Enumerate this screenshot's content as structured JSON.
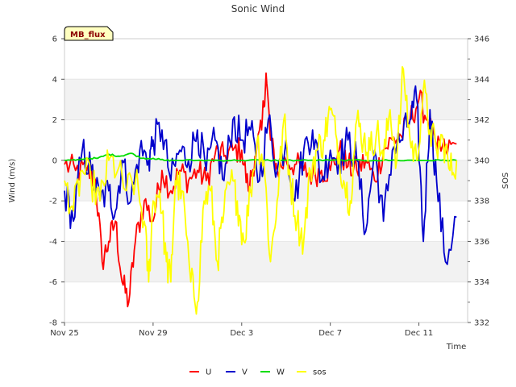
{
  "chart_data": {
    "type": "line",
    "title": "Sonic Wind",
    "badge": "MB_flux",
    "xlabel": "Time",
    "ylabel": "Wind (m/s)",
    "y2label": "SOS",
    "x_start_day": 0,
    "x_end_day": 17.7,
    "xlim": [
      0,
      18.2
    ],
    "x_ticks": [
      {
        "day": 0,
        "label": "Nov 25"
      },
      {
        "day": 4,
        "label": "Nov 29"
      },
      {
        "day": 8,
        "label": "Dec 3"
      },
      {
        "day": 12,
        "label": "Dec 7"
      },
      {
        "day": 16,
        "label": "Dec 11"
      }
    ],
    "ylim": [
      -8,
      6
    ],
    "y_ticks": [
      -8,
      -6,
      -4,
      -2,
      0,
      2,
      4,
      6
    ],
    "y2lim": [
      332,
      346
    ],
    "y2_ticks": [
      332,
      334,
      336,
      338,
      340,
      342,
      344,
      346
    ],
    "bands": [
      [
        -6,
        -4
      ],
      [
        -2,
        0
      ],
      [
        2,
        4
      ]
    ],
    "series": [
      {
        "name": "U",
        "color": "#ff0000",
        "axis": "left",
        "x": [
          0,
          0.5,
          1,
          1.4,
          1.7,
          2,
          2.3,
          2.6,
          2.9,
          3.2,
          3.6,
          4,
          4.4,
          4.8,
          5.2,
          5.6,
          6,
          6.4,
          6.8,
          7.2,
          7.6,
          8,
          8.3,
          8.6,
          8.9,
          9.1,
          9.3,
          9.6,
          10,
          10.4,
          10.8,
          11.2,
          11.6,
          12,
          12.4,
          12.8,
          13.2,
          13.6,
          14,
          14.4,
          14.8,
          15.2,
          15.6,
          16,
          16.4,
          16.8,
          17.2,
          17.7
        ],
        "values": [
          -0.2,
          -0.5,
          -0.5,
          -1.0,
          -5.0,
          -4.0,
          -3.0,
          -6.0,
          -7.0,
          -4.0,
          -2.0,
          -3.0,
          -0.5,
          -1.5,
          -0.5,
          -1.0,
          -0.5,
          -1.0,
          0.3,
          0.2,
          0.5,
          0.5,
          -1.5,
          0.2,
          1.5,
          4.3,
          1.0,
          -0.5,
          0.0,
          -0.2,
          -0.5,
          -0.7,
          -0.5,
          -0.5,
          0.5,
          -0.3,
          -0.5,
          0.0,
          -1.0,
          0.5,
          1.0,
          1.2,
          2.0,
          3.0,
          2.0,
          0.5,
          0.5,
          0.8
        ]
      },
      {
        "name": "V",
        "color": "#0000cc",
        "axis": "left",
        "x": [
          0,
          0.4,
          0.8,
          1.2,
          1.6,
          2,
          2.3,
          2.6,
          3,
          3.4,
          3.8,
          4,
          4.4,
          4.8,
          5.2,
          5.6,
          6,
          6.4,
          6.8,
          7.2,
          7.6,
          8,
          8.4,
          8.8,
          9.2,
          9.6,
          10,
          10.4,
          10.8,
          11.2,
          11.6,
          12,
          12.4,
          12.8,
          13.2,
          13.6,
          14,
          14.4,
          14.8,
          15.2,
          15.6,
          15.9,
          16.2,
          16.5,
          16.8,
          17.2,
          17.7
        ],
        "values": [
          -1.5,
          -3.0,
          0.5,
          -0.5,
          -2.0,
          -1.5,
          -2.5,
          0.0,
          -2.0,
          0.5,
          0.0,
          1.0,
          1.5,
          -1.0,
          0.5,
          0.0,
          1.5,
          -0.5,
          1.0,
          -1.0,
          2.0,
          1.0,
          1.5,
          -1.0,
          2.0,
          -0.5,
          1.0,
          -2.0,
          0.5,
          1.5,
          -1.0,
          0.5,
          0.0,
          1.0,
          0.0,
          -3.5,
          0.5,
          -3.0,
          0.5,
          1.0,
          2.0,
          3.0,
          -4.0,
          2.5,
          -1.0,
          -5.0,
          -2.8
        ]
      },
      {
        "name": "W",
        "color": "#00dd00",
        "axis": "left",
        "x": [
          0,
          0.5,
          1,
          1.5,
          2,
          2.5,
          3,
          3.5,
          4,
          4.5,
          5,
          6,
          7,
          8,
          9,
          10,
          11,
          12,
          13,
          14,
          15,
          16,
          17,
          17.7
        ],
        "values": [
          0.0,
          0.0,
          0.1,
          0.1,
          0.3,
          0.2,
          0.35,
          0.1,
          0.1,
          0.0,
          0.0,
          0.0,
          0.0,
          0.0,
          0.0,
          0.0,
          0.0,
          0.0,
          0.0,
          0.0,
          0.0,
          0.0,
          0.0,
          0.0
        ]
      },
      {
        "name": "sos",
        "color": "#ffff00",
        "axis": "right",
        "x": [
          0,
          0.4,
          0.8,
          1.2,
          1.6,
          2,
          2.4,
          2.8,
          3.2,
          3.6,
          3.8,
          4.0,
          4.3,
          4.6,
          4.8,
          5.0,
          5.3,
          5.7,
          6.0,
          6.3,
          6.6,
          6.9,
          7.2,
          7.5,
          7.8,
          8.1,
          8.4,
          8.7,
          9.0,
          9.3,
          9.6,
          9.9,
          10.2,
          10.5,
          10.8,
          11.1,
          11.4,
          11.7,
          12.0,
          12.3,
          12.6,
          12.9,
          13.2,
          13.5,
          13.8,
          14.1,
          14.4,
          14.7,
          15.0,
          15.3,
          15.6,
          15.9,
          16.2,
          16.5,
          16.8,
          17.1,
          17.4,
          17.7
        ],
        "values": [
          339.0,
          337.5,
          339.5,
          339.0,
          338.0,
          340.0,
          339.5,
          338.5,
          339.0,
          337.0,
          334.0,
          338.0,
          338.5,
          335.0,
          334.0,
          339.0,
          338.5,
          334.0,
          333.0,
          338.0,
          338.5,
          335.0,
          337.5,
          339.0,
          338.0,
          336.0,
          338.5,
          341.0,
          340.0,
          335.0,
          338.0,
          342.0,
          339.0,
          337.0,
          336.0,
          339.5,
          340.5,
          341.0,
          342.5,
          341.0,
          339.0,
          338.0,
          342.0,
          341.0,
          340.5,
          341.5,
          340.0,
          342.5,
          340.0,
          344.5,
          341.0,
          340.0,
          343.5,
          341.5,
          340.5,
          341.0,
          339.5,
          340.0
        ]
      }
    ],
    "legend": [
      "U",
      "V",
      "W",
      "sos"
    ]
  }
}
